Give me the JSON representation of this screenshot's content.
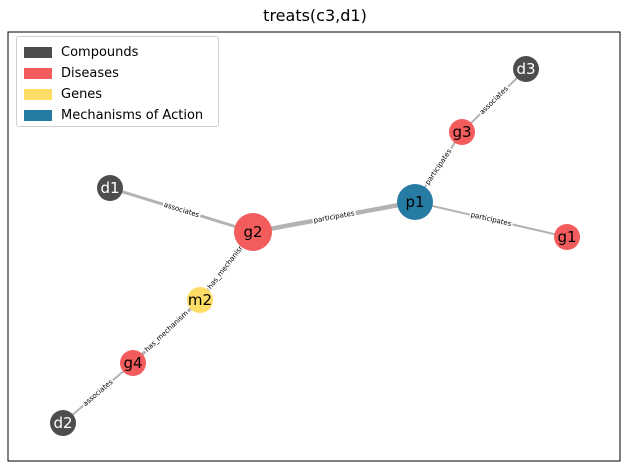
{
  "title": "treats(c3,d1)",
  "legend": [
    {
      "label": "Compounds",
      "color": "#4d4d4d"
    },
    {
      "label": "Diseases",
      "color": "#f25c5c"
    },
    {
      "label": "Genes",
      "color": "#fddd66"
    },
    {
      "label": "Mechanisms of Action",
      "color": "#267ba3"
    }
  ],
  "nodes": [
    {
      "id": "d3",
      "type": "compound"
    },
    {
      "id": "g3",
      "type": "disease"
    },
    {
      "id": "p1",
      "type": "mechanism"
    },
    {
      "id": "g1",
      "type": "disease"
    },
    {
      "id": "d1",
      "type": "compound"
    },
    {
      "id": "g2",
      "type": "disease"
    },
    {
      "id": "m2",
      "type": "gene"
    },
    {
      "id": "g4",
      "type": "disease"
    },
    {
      "id": "d2",
      "type": "compound"
    }
  ],
  "edges": [
    {
      "source": "d1",
      "target": "g2",
      "label": "associates"
    },
    {
      "source": "g2",
      "target": "p1",
      "label": "participates"
    },
    {
      "source": "p1",
      "target": "g3",
      "label": "participates"
    },
    {
      "source": "g3",
      "target": "d3",
      "label": "associates"
    },
    {
      "source": "p1",
      "target": "g1",
      "label": "participates"
    },
    {
      "source": "g2",
      "target": "m2",
      "label": "has_mechanism"
    },
    {
      "source": "m2",
      "target": "g4",
      "label": "has_mechanism"
    },
    {
      "source": "g4",
      "target": "d2",
      "label": "associates"
    }
  ],
  "colors": {
    "compound": "#4d4d4d",
    "disease": "#f25c5c",
    "gene": "#fddd66",
    "mechanism": "#267ba3",
    "edge": "#b3b3b3",
    "frame": "#000000"
  }
}
